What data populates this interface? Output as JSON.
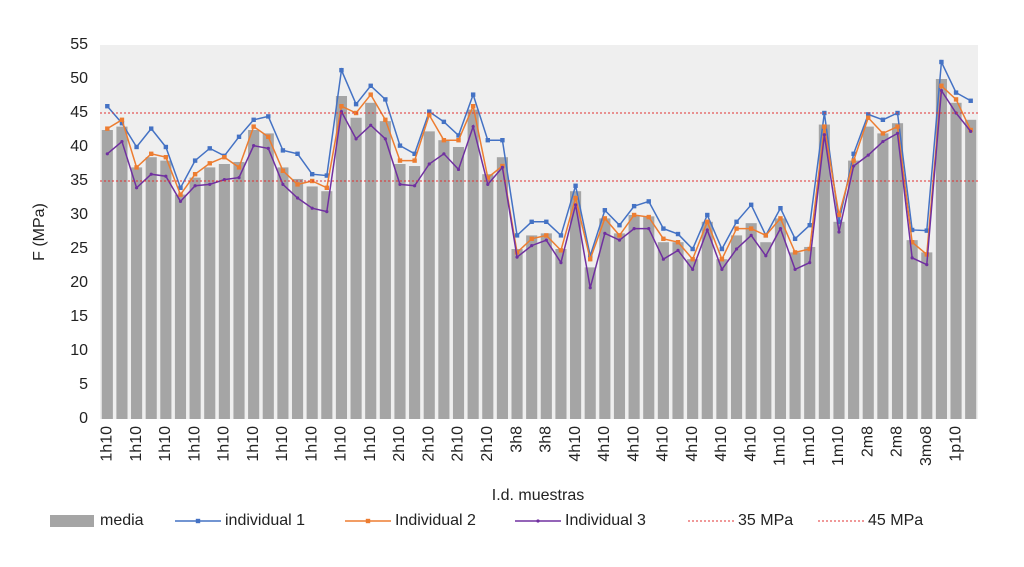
{
  "chart_data": {
    "type": "bar_line",
    "y_label": "F (MPa)",
    "x_label": "I.d. muestras",
    "categories": [
      "1h10",
      null,
      "1h10",
      null,
      "1h10",
      null,
      "1h10",
      null,
      "1h10",
      null,
      "1h10",
      null,
      "1h10",
      null,
      "1h10",
      null,
      "1h10",
      null,
      "1h10",
      null,
      "2h10",
      null,
      "2h10",
      null,
      "2h10",
      null,
      "2h10",
      null,
      "3h8",
      null,
      "3h8",
      null,
      "4h10",
      null,
      "4h10",
      null,
      "4h10",
      null,
      "4h10",
      null,
      "4h10",
      null,
      "4h10",
      null,
      "4h10",
      null,
      "1m10",
      null,
      "1m10",
      null,
      "1m10",
      null,
      "2m8",
      null,
      "2m8",
      null,
      "3mo8",
      null,
      "1p10",
      null
    ],
    "series": [
      {
        "name": "media",
        "kind": "bar",
        "color": "#a5a5a5",
        "values": [
          42.5,
          43,
          37,
          38.5,
          38,
          33,
          35.5,
          37,
          37.5,
          37.8,
          42.5,
          42,
          37,
          35.3,
          34.2,
          33.5,
          47.5,
          44.3,
          46.5,
          43.8,
          37.5,
          37.2,
          42.3,
          41,
          40,
          45.5,
          36,
          38.5,
          25,
          27,
          27.3,
          25,
          33.5,
          22.3,
          29.5,
          27.3,
          30,
          29.8,
          26,
          26,
          23.5,
          29,
          23.5,
          27,
          28.8,
          26,
          29.5,
          24.5,
          25.3,
          43.3,
          29,
          38,
          43,
          42,
          43.5,
          26.3,
          24.5,
          50,
          46.5,
          44
        ]
      },
      {
        "name": "individual 1",
        "kind": "line",
        "marker": "square",
        "color": "#4472c4",
        "values": [
          46,
          43.5,
          40,
          42.7,
          40,
          34,
          38,
          39.8,
          38.7,
          41.5,
          44,
          44.5,
          39.5,
          39,
          36,
          35.8,
          51.3,
          46.3,
          49,
          47,
          40.2,
          39,
          45.2,
          43.7,
          41.7,
          47.7,
          41,
          41,
          27,
          29,
          29,
          27,
          34.3,
          24,
          30.7,
          28.5,
          31.3,
          32,
          28,
          27.2,
          25,
          30,
          25,
          29,
          31.5,
          27,
          31,
          26.5,
          28.5,
          45,
          29,
          39,
          44.8,
          44,
          45,
          27.8,
          27.7,
          52.5,
          48,
          46.8
        ]
      },
      {
        "name": "Individual 2",
        "kind": "line",
        "marker": "square",
        "color": "#ed7d31",
        "values": [
          42.7,
          44,
          37,
          39,
          38.5,
          33,
          36,
          37.6,
          38.5,
          37,
          43,
          41.5,
          36.5,
          34.5,
          35,
          34,
          46,
          45,
          47.7,
          44,
          38,
          38,
          44.7,
          41,
          41,
          46,
          35.5,
          37.2,
          24.5,
          26.5,
          27,
          24.8,
          32.5,
          23.5,
          29.5,
          27,
          30,
          29.7,
          26.5,
          26,
          23.5,
          29,
          23.5,
          28,
          28,
          27,
          29.5,
          24.5,
          25,
          43,
          30,
          38,
          44.3,
          42,
          43,
          26,
          24.2,
          49,
          47,
          42.5
        ]
      },
      {
        "name": "Individual 3",
        "kind": "line",
        "marker": "dot",
        "color": "#7030a0",
        "values": [
          39,
          40.8,
          34,
          36,
          35.7,
          32,
          34.3,
          34.5,
          35.2,
          35.5,
          40.2,
          39.8,
          34.5,
          32.5,
          31,
          30.5,
          45.2,
          41.2,
          43.2,
          41.2,
          34.5,
          34.3,
          37.5,
          39,
          36.7,
          43,
          34.5,
          37,
          23.8,
          25.5,
          26.3,
          23,
          31.5,
          19.3,
          27.3,
          26.3,
          28,
          28,
          23.5,
          24.8,
          22,
          27.8,
          22,
          25,
          27,
          24,
          28,
          22,
          23,
          41.8,
          27.5,
          37.2,
          38.8,
          40.8,
          42,
          23.7,
          22.7,
          48.3,
          45,
          42.3
        ]
      }
    ],
    "reference_lines": [
      {
        "name": "35 MPa",
        "value": 35,
        "color": "#e03030"
      },
      {
        "name": "45 MPa",
        "value": 45,
        "color": "#e03030"
      }
    ],
    "ylim": [
      0,
      55
    ],
    "yticks": [
      0,
      5,
      10,
      15,
      20,
      25,
      30,
      35,
      40,
      45,
      50,
      55
    ],
    "grid": false
  }
}
